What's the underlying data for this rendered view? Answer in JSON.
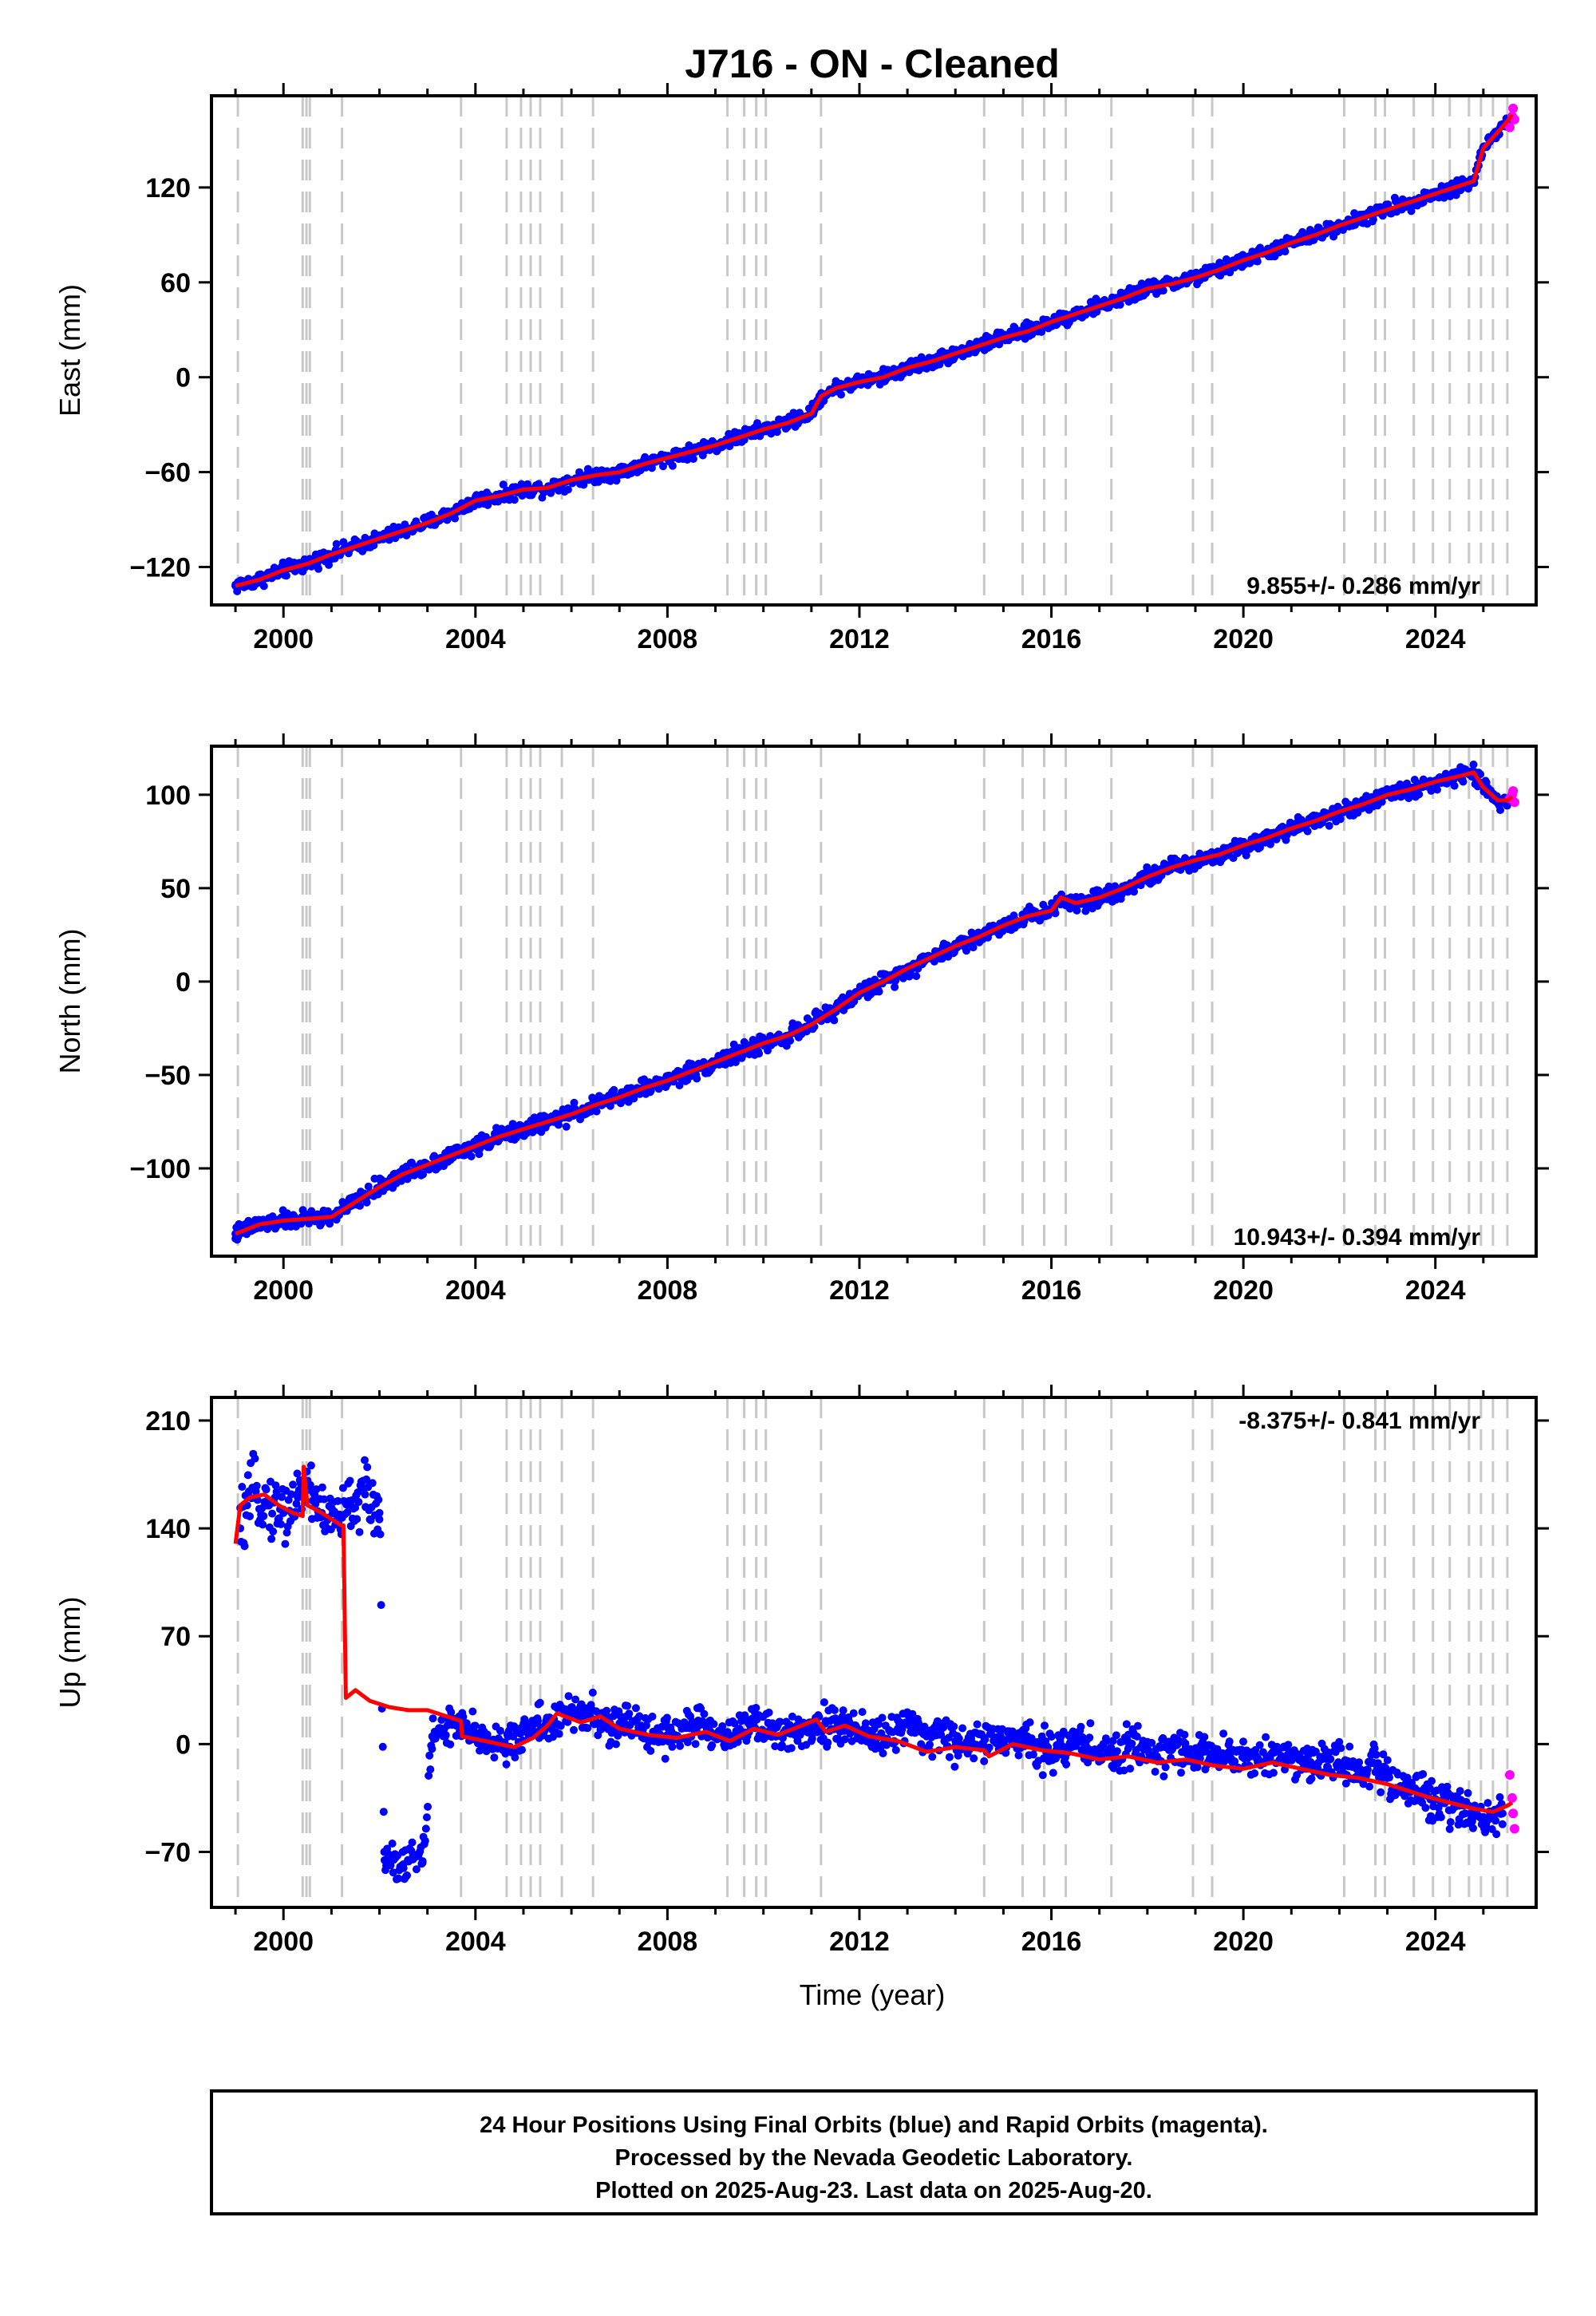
{
  "title": "J716  - ON - Cleaned",
  "footer": {
    "line1": "24 Hour Positions Using Final Orbits (blue) and Rapid Orbits (magenta).",
    "line2": "Processed by the Nevada Geodetic Laboratory.",
    "line3": "Plotted on 2025-Aug-23. Last data on 2025-Aug-20."
  },
  "colors": {
    "final_orbits": "#0000ff",
    "rapid_orbits": "#ff00ff",
    "model": "#ff0000",
    "event_lines": "#c8c8c8"
  },
  "chart_data": [
    {
      "type": "scatter",
      "title": "J716  - ON - Cleaned",
      "xlabel": "",
      "ylabel": "East (mm)",
      "xlim": [
        1998.5,
        2026.1
      ],
      "ylim": [
        -144,
        178
      ],
      "xticks": [
        2000,
        2004,
        2008,
        2012,
        2016,
        2020,
        2024
      ],
      "yticks": [
        -120,
        -60,
        0,
        60,
        120
      ],
      "rate_text": "9.855+/- 0.286 mm/yr",
      "grid": false,
      "series": [
        {
          "style": "final-points",
          "x": [
            1999.0,
            1999.5,
            2000.0,
            2000.5,
            2001.0,
            2001.5,
            2002.0,
            2002.5,
            2003.0,
            2003.5,
            2004.0,
            2004.5,
            2005.0,
            2005.5,
            2006.0,
            2006.5,
            2007.0,
            2007.5,
            2008.0,
            2008.5,
            2009.0,
            2009.5,
            2010.0,
            2010.5,
            2011.0,
            2011.2,
            2011.5,
            2012.0,
            2012.5,
            2013.0,
            2013.5,
            2014.0,
            2014.5,
            2015.0,
            2015.5,
            2016.0,
            2016.5,
            2017.0,
            2017.5,
            2018.0,
            2018.5,
            2019.0,
            2019.5,
            2020.0,
            2020.5,
            2021.0,
            2021.5,
            2022.0,
            2022.5,
            2023.0,
            2023.5,
            2024.0,
            2024.5,
            2024.8,
            2025.0,
            2025.3,
            2025.5
          ],
          "y": [
            -132,
            -128,
            -122,
            -118,
            -112,
            -107,
            -102,
            -97,
            -92,
            -86,
            -78,
            -75,
            -71,
            -70,
            -65,
            -62,
            -60,
            -55,
            -51,
            -47,
            -43,
            -38,
            -33,
            -29,
            -23,
            -12,
            -7,
            -3,
            0,
            6,
            10,
            15,
            20,
            25,
            29,
            35,
            40,
            45,
            50,
            56,
            59,
            63,
            68,
            74,
            79,
            85,
            90,
            96,
            101,
            106,
            111,
            116,
            121,
            124,
            145,
            155,
            162
          ]
        },
        {
          "style": "rapid-points",
          "x": [
            2025.55,
            2025.6,
            2025.62,
            2025.65
          ],
          "y": [
            158,
            165,
            170,
            163
          ]
        },
        {
          "style": "model-line",
          "x": [
            1999.0,
            1999.5,
            2000.0,
            2000.5,
            2001.0,
            2001.5,
            2002.0,
            2002.5,
            2003.0,
            2003.5,
            2004.0,
            2004.5,
            2005.0,
            2005.5,
            2006.0,
            2006.5,
            2007.0,
            2007.5,
            2008.0,
            2008.5,
            2009.0,
            2009.5,
            2010.0,
            2010.5,
            2011.0,
            2011.2,
            2011.5,
            2012.0,
            2012.5,
            2013.0,
            2013.5,
            2014.0,
            2014.5,
            2015.0,
            2015.5,
            2016.0,
            2016.5,
            2017.0,
            2017.5,
            2018.0,
            2018.5,
            2019.0,
            2019.5,
            2020.0,
            2020.5,
            2021.0,
            2021.5,
            2022.0,
            2022.5,
            2023.0,
            2023.5,
            2024.0,
            2024.5,
            2024.8,
            2025.0,
            2025.3,
            2025.5,
            2025.6
          ],
          "y": [
            -132,
            -128,
            -122,
            -118,
            -112,
            -107,
            -102,
            -97,
            -92,
            -86,
            -78,
            -75,
            -71,
            -70,
            -65,
            -62,
            -60,
            -55,
            -51,
            -47,
            -43,
            -38,
            -33,
            -29,
            -23,
            -12,
            -7,
            -3,
            0,
            6,
            10,
            15,
            20,
            25,
            29,
            35,
            40,
            45,
            50,
            56,
            59,
            63,
            68,
            74,
            79,
            85,
            90,
            96,
            101,
            106,
            111,
            116,
            121,
            124,
            145,
            155,
            162,
            166
          ]
        }
      ]
    },
    {
      "type": "scatter",
      "xlabel": "",
      "ylabel": "North (mm)",
      "xlim": [
        1998.5,
        2026.1
      ],
      "ylim": [
        -147,
        126
      ],
      "xticks": [
        2000,
        2004,
        2008,
        2012,
        2016,
        2020,
        2024
      ],
      "yticks": [
        -100,
        -50,
        0,
        50,
        100
      ],
      "rate_text": "10.943+/- 0.394 mm/yr",
      "grid": false,
      "series": [
        {
          "style": "final-points",
          "x": [
            1999.0,
            1999.5,
            2000.0,
            2000.5,
            2001.0,
            2001.5,
            2002.0,
            2002.5,
            2003.0,
            2003.5,
            2004.0,
            2004.5,
            2005.0,
            2005.5,
            2006.0,
            2006.5,
            2007.0,
            2007.5,
            2008.0,
            2008.5,
            2009.0,
            2009.5,
            2010.0,
            2010.5,
            2011.0,
            2011.5,
            2012.0,
            2012.5,
            2013.0,
            2013.5,
            2014.0,
            2014.5,
            2015.0,
            2015.5,
            2016.0,
            2016.2,
            2016.5,
            2017.0,
            2017.5,
            2018.0,
            2018.5,
            2019.0,
            2019.5,
            2020.0,
            2020.5,
            2021.0,
            2021.5,
            2022.0,
            2022.5,
            2023.0,
            2023.5,
            2024.0,
            2024.5,
            2024.8,
            2025.0,
            2025.3,
            2025.5
          ],
          "y": [
            -135,
            -130,
            -128,
            -127,
            -126,
            -118,
            -110,
            -103,
            -98,
            -93,
            -88,
            -83,
            -79,
            -75,
            -71,
            -66,
            -62,
            -57,
            -53,
            -48,
            -43,
            -38,
            -33,
            -29,
            -23,
            -15,
            -6,
            0,
            7,
            13,
            19,
            24,
            30,
            35,
            38,
            45,
            42,
            45,
            50,
            56,
            61,
            65,
            68,
            73,
            77,
            82,
            86,
            91,
            95,
            100,
            103,
            107,
            110,
            112,
            104,
            97,
            97
          ]
        },
        {
          "style": "rapid-points",
          "x": [
            2025.55,
            2025.6,
            2025.62,
            2025.65
          ],
          "y": [
            98,
            100,
            102,
            96
          ]
        },
        {
          "style": "model-line",
          "x": [
            1999.0,
            1999.5,
            2000.0,
            2000.5,
            2001.0,
            2001.5,
            2002.0,
            2002.5,
            2003.0,
            2003.5,
            2004.0,
            2004.5,
            2005.0,
            2005.5,
            2006.0,
            2006.5,
            2007.0,
            2007.5,
            2008.0,
            2008.5,
            2009.0,
            2009.5,
            2010.0,
            2010.5,
            2011.0,
            2011.5,
            2012.0,
            2012.5,
            2013.0,
            2013.5,
            2014.0,
            2014.5,
            2015.0,
            2015.5,
            2016.0,
            2016.2,
            2016.5,
            2017.0,
            2017.5,
            2018.0,
            2018.5,
            2019.0,
            2019.5,
            2020.0,
            2020.5,
            2021.0,
            2021.5,
            2022.0,
            2022.5,
            2023.0,
            2023.5,
            2024.0,
            2024.5,
            2024.8,
            2025.0,
            2025.3,
            2025.5,
            2025.6
          ],
          "y": [
            -135,
            -130,
            -128,
            -127,
            -126,
            -118,
            -110,
            -103,
            -98,
            -93,
            -88,
            -83,
            -79,
            -75,
            -71,
            -66,
            -62,
            -57,
            -53,
            -48,
            -43,
            -38,
            -33,
            -29,
            -23,
            -15,
            -6,
            0,
            7,
            13,
            19,
            24,
            30,
            35,
            38,
            45,
            42,
            45,
            50,
            56,
            61,
            65,
            68,
            73,
            77,
            82,
            86,
            91,
            95,
            100,
            103,
            107,
            110,
            112,
            104,
            97,
            97,
            99
          ]
        }
      ]
    },
    {
      "type": "scatter",
      "xlabel": "Time (year)",
      "ylabel": "Up (mm)",
      "xlim": [
        1998.5,
        2026.1
      ],
      "ylim": [
        -106,
        225
      ],
      "xticks": [
        2000,
        2004,
        2008,
        2012,
        2016,
        2020,
        2024
      ],
      "yticks": [
        -70,
        0,
        70,
        140,
        210
      ],
      "rate_text": "-8.375+/- 0.841 mm/yr",
      "grid": false,
      "series": [
        {
          "style": "final-points",
          "x": [
            1999.1,
            1999.4,
            1999.7,
            2000.0,
            2000.3,
            2000.5,
            2000.8,
            2001.1,
            2001.4,
            2001.7,
            2002.0,
            2002.1,
            2002.3,
            2002.5,
            2002.7,
            2002.9,
            2003.1,
            2003.3,
            2003.6,
            2003.8,
            2004.1,
            2004.4,
            2004.7,
            2005.0,
            2005.3,
            2005.6,
            2005.9,
            2006.2,
            2006.5,
            2006.8,
            2007.1,
            2007.4,
            2007.7,
            2008.0,
            2008.3,
            2008.6,
            2008.9,
            2009.2,
            2009.5,
            2009.8,
            2010.1,
            2010.4,
            2010.7,
            2011.0,
            2011.3,
            2011.6,
            2011.9,
            2012.2,
            2012.5,
            2012.8,
            2013.1,
            2013.4,
            2013.7,
            2014.0,
            2014.3,
            2014.6,
            2014.9,
            2015.2,
            2015.5,
            2015.8,
            2016.1,
            2016.4,
            2016.7,
            2017.0,
            2017.3,
            2017.6,
            2017.9,
            2018.2,
            2018.5,
            2018.8,
            2019.1,
            2019.4,
            2019.7,
            2020.0,
            2020.3,
            2020.6,
            2020.9,
            2021.2,
            2021.5,
            2021.8,
            2022.1,
            2022.4,
            2022.7,
            2023.0,
            2023.3,
            2023.6,
            2023.9,
            2024.2,
            2024.5,
            2024.8,
            2025.1,
            2025.4
          ],
          "y": [
            140,
            165,
            155,
            150,
            160,
            170,
            150,
            145,
            155,
            162,
            150,
            -70,
            -75,
            -78,
            -72,
            -76,
            5,
            10,
            12,
            8,
            5,
            2,
            -2,
            8,
            15,
            12,
            18,
            22,
            16,
            10,
            14,
            12,
            8,
            6,
            10,
            12,
            8,
            5,
            10,
            14,
            8,
            6,
            12,
            10,
            15,
            8,
            12,
            6,
            4,
            10,
            8,
            5,
            6,
            2,
            -2,
            4,
            2,
            0,
            5,
            -2,
            -4,
            0,
            2,
            -5,
            -8,
            -3,
            0,
            -8,
            -4,
            -2,
            -6,
            -10,
            -5,
            -8,
            -12,
            -6,
            -8,
            -10,
            -14,
            -10,
            -14,
            -18,
            -12,
            -22,
            -28,
            -30,
            -36,
            -38,
            -40,
            -44,
            -48,
            -45
          ]
        },
        {
          "style": "rapid-points",
          "x": [
            2025.55,
            2025.6,
            2025.62,
            2025.65
          ],
          "y": [
            -20,
            -35,
            -45,
            -55
          ]
        },
        {
          "style": "model-line",
          "x": [
            1999.0,
            1999.1,
            1999.3,
            1999.6,
            1999.9,
            2000.2,
            2000.4,
            2000.42,
            2000.5,
            2000.8,
            2001.2,
            2001.25,
            2001.3,
            2001.5,
            2001.8,
            2002.2,
            2002.6,
            2003.0,
            2003.4,
            2003.7,
            2003.72,
            2004.2,
            2004.8,
            2005.2,
            2005.5,
            2005.7,
            2006.2,
            2006.6,
            2007.0,
            2007.6,
            2008.2,
            2008.8,
            2009.3,
            2009.8,
            2010.3,
            2010.8,
            2011.1,
            2011.3,
            2011.7,
            2012.2,
            2012.8,
            2013.4,
            2014.0,
            2014.6,
            2014.7,
            2015.2,
            2015.8,
            2016.4,
            2017.0,
            2017.6,
            2018.2,
            2018.8,
            2019.4,
            2020.0,
            2020.6,
            2021.2,
            2021.8,
            2022.4,
            2023.0,
            2023.4,
            2023.8,
            2024.3,
            2024.8,
            2025.2,
            2025.5,
            2025.6
          ],
          "y": [
            130,
            155,
            160,
            162,
            155,
            150,
            148,
            180,
            155,
            150,
            142,
            142,
            30,
            35,
            28,
            24,
            22,
            22,
            18,
            15,
            5,
            2,
            -2,
            4,
            12,
            20,
            14,
            18,
            10,
            6,
            4,
            8,
            2,
            10,
            6,
            12,
            16,
            8,
            12,
            5,
            2,
            -5,
            -2,
            -4,
            -8,
            0,
            -4,
            -6,
            -10,
            -8,
            -12,
            -10,
            -14,
            -16,
            -12,
            -16,
            -20,
            -22,
            -26,
            -30,
            -34,
            -38,
            -42,
            -44,
            -40,
            -38
          ]
        }
      ]
    }
  ],
  "event_years": [
    1999.05,
    2000.4,
    2000.48,
    2000.55,
    2001.22,
    2003.7,
    2004.65,
    2004.95,
    2005.15,
    2005.35,
    2005.8,
    2006.45,
    2009.25,
    2009.6,
    2009.85,
    2010.05,
    2011.2,
    2014.6,
    2015.4,
    2015.85,
    2016.3,
    2017.25,
    2018.95,
    2019.35,
    2022.1,
    2022.75,
    2022.95,
    2023.55,
    2023.95,
    2024.3,
    2024.7,
    2024.95,
    2025.2,
    2025.5
  ]
}
